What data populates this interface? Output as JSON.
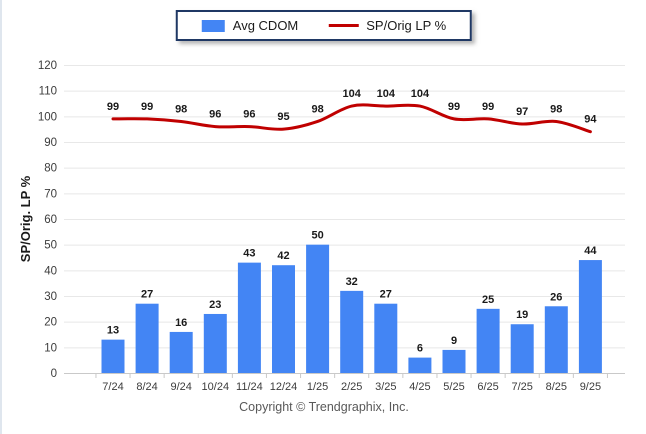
{
  "legend": {
    "items": [
      {
        "label": "Avg CDOM",
        "type": "bar",
        "color": "#4385f4"
      },
      {
        "label": "SP/Orig LP %",
        "type": "line",
        "color": "#c00000"
      }
    ]
  },
  "chart_data": {
    "type": "bar+line",
    "categories": [
      "7/24",
      "8/24",
      "9/24",
      "10/24",
      "11/24",
      "12/24",
      "1/25",
      "2/25",
      "3/25",
      "4/25",
      "5/25",
      "6/25",
      "7/25",
      "8/25",
      "9/25"
    ],
    "series": [
      {
        "name": "Avg CDOM",
        "type": "bar",
        "color": "#4385f4",
        "values": [
          13,
          27,
          16,
          23,
          43,
          42,
          50,
          32,
          27,
          6,
          9,
          25,
          19,
          26,
          44
        ]
      },
      {
        "name": "SP/Orig LP %",
        "type": "line",
        "color": "#c00000",
        "values": [
          99,
          99,
          98,
          96,
          96,
          95,
          98,
          104,
          104,
          104,
          99,
          99,
          97,
          98,
          94
        ]
      }
    ],
    "title": "",
    "xlabel": "",
    "ylabel": "SP/Orig. LP %",
    "ylim": [
      0,
      120
    ],
    "ytick_step": 10,
    "grid": true,
    "legend_position": "top-center",
    "label_color": "#1a1a1a",
    "axis_text_color": "#3c3c3c",
    "grid_color": "#e8e8e8",
    "axis_line_color": "#c9c9c9"
  },
  "footer": {
    "copyright": "Copyright © Trendgraphix, Inc."
  }
}
